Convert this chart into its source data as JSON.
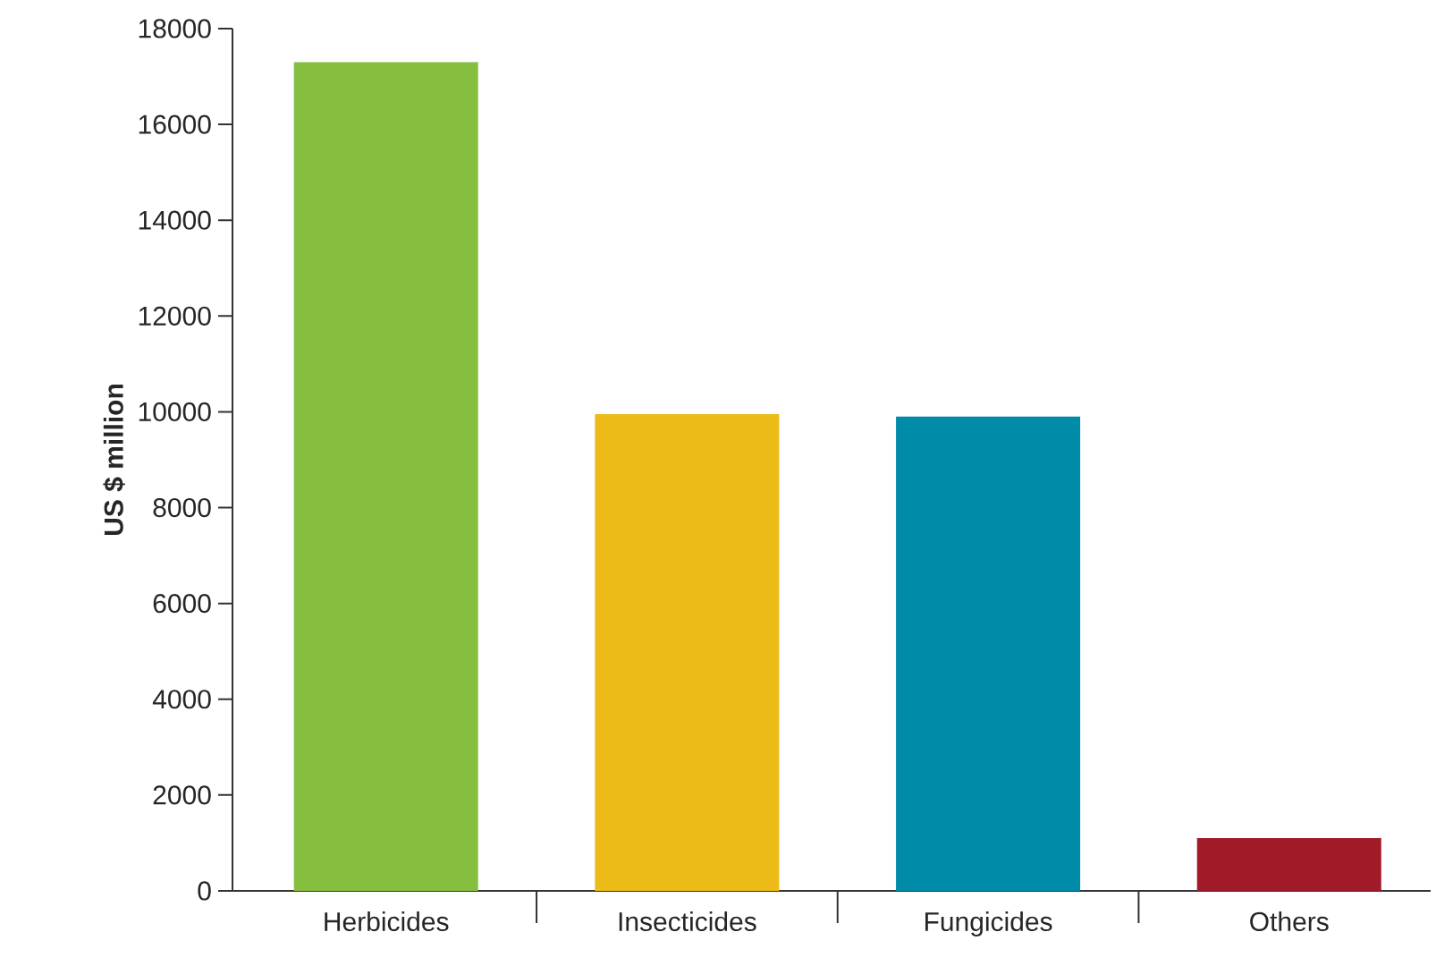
{
  "chart_data": {
    "type": "bar",
    "ylabel": "US $ million",
    "categories": [
      "Herbicides",
      "Insecticides",
      "Fungicides",
      "Others"
    ],
    "values": [
      17300,
      9950,
      9900,
      1100
    ],
    "colors": [
      "#86bf40",
      "#ecbb17",
      "#008ba9",
      "#a01a28"
    ],
    "ylim": [
      0,
      18000
    ],
    "yticks": [
      0,
      2000,
      4000,
      6000,
      8000,
      10000,
      12000,
      14000,
      16000,
      18000
    ],
    "grid": false
  }
}
